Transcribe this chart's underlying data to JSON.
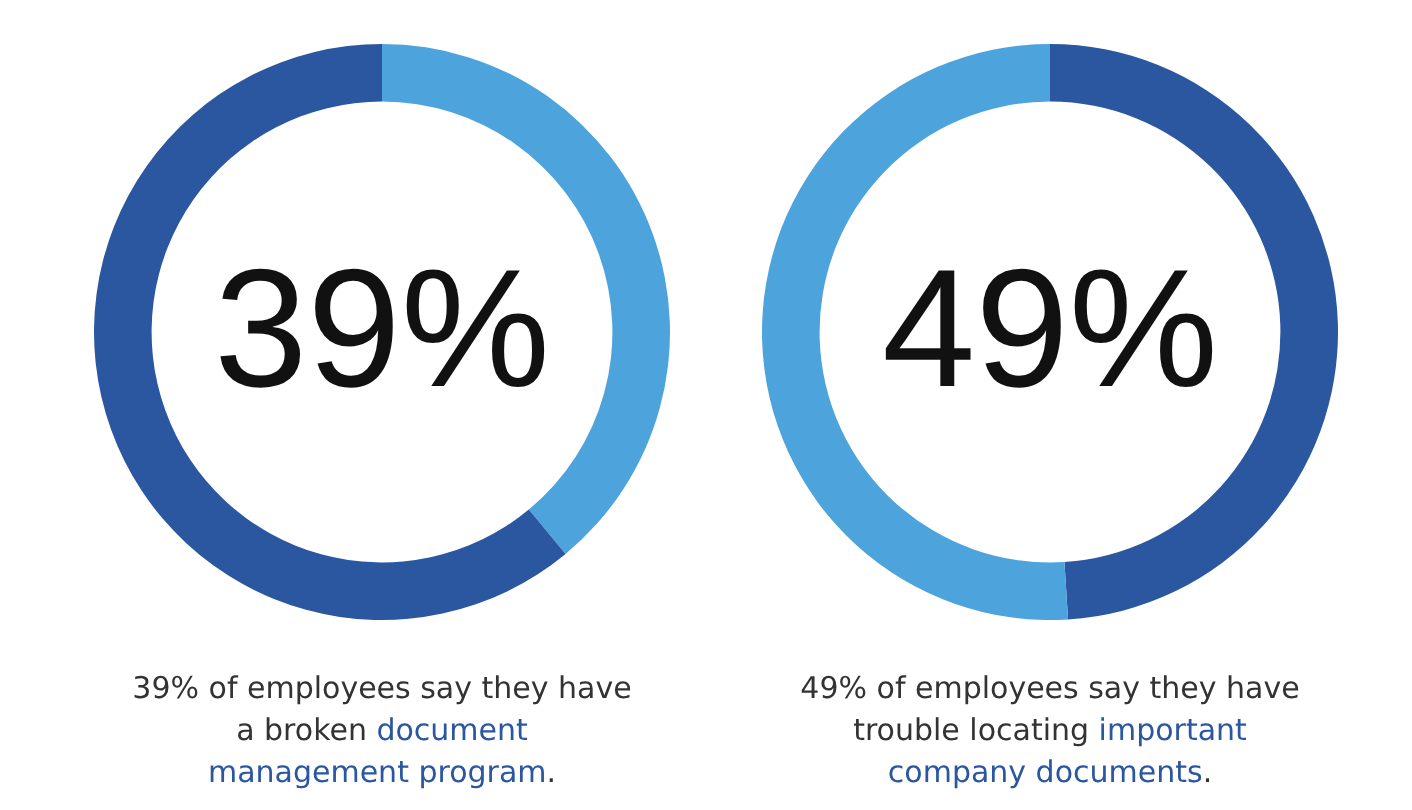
{
  "chart_data": [
    {
      "type": "donut",
      "categories": [
        null,
        null
      ],
      "values": [
        39,
        61
      ],
      "colors": [
        "#4da3db",
        "#2b57a0"
      ],
      "value_labels": [
        "39%",
        null
      ],
      "annotations": [
        "39% of employees say they have a broken ",
        "document management program",
        "."
      ]
    },
    {
      "type": "donut",
      "categories": [
        null,
        null
      ],
      "values": [
        49,
        51
      ],
      "colors": [
        "#2b57a0",
        "#4da3db"
      ],
      "value_labels": [
        "49%",
        null
      ],
      "annotations": [
        "49% of employees say they have trouble locating ",
        "important company documents",
        "."
      ]
    }
  ]
}
